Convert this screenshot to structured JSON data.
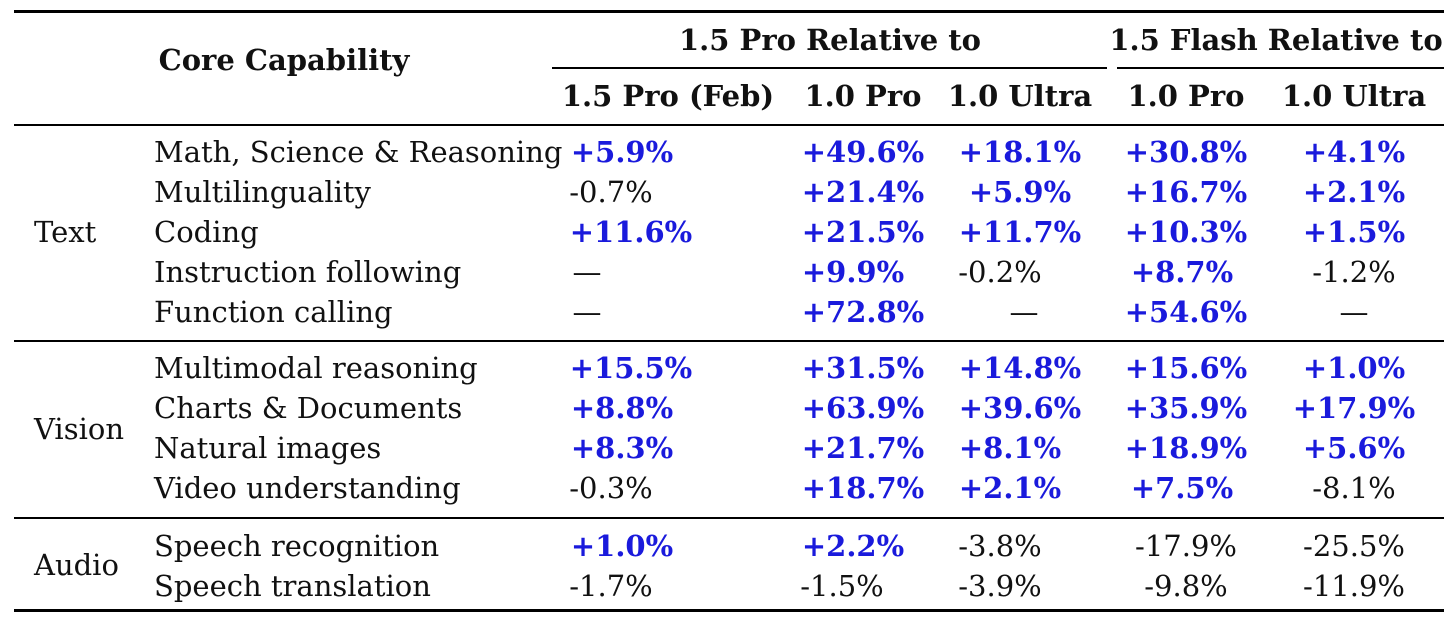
{
  "table": {
    "header": {
      "core_capability": "Core Capability",
      "group_pro": "1.5 Pro Relative to",
      "group_flash": "1.5 Flash Relative to",
      "columns": [
        "1.5 Pro (Feb)",
        "1.0 Pro",
        "1.0 Ultra",
        "1.0 Pro",
        "1.0 Ultra"
      ]
    },
    "sections": [
      {
        "name": "Text",
        "rows": [
          {
            "capability": "Math, Science & Reasoning",
            "values": [
              "+5.9%",
              "+49.6%",
              "+18.1%",
              "+30.8%",
              "+4.1%"
            ]
          },
          {
            "capability": "Multilinguality",
            "values": [
              "-0.7%",
              "+21.4%",
              "+5.9%",
              "+16.7%",
              "+2.1%"
            ]
          },
          {
            "capability": "Coding",
            "values": [
              "+11.6%",
              "+21.5%",
              "+11.7%",
              "+10.3%",
              "+1.5%"
            ]
          },
          {
            "capability": "Instruction following",
            "values": [
              "—",
              "+9.9%",
              "-0.2%",
              "+8.7%",
              "-1.2%"
            ]
          },
          {
            "capability": "Function calling",
            "values": [
              "—",
              "+72.8%",
              "—",
              "+54.6%",
              "—"
            ]
          }
        ]
      },
      {
        "name": "Vision",
        "rows": [
          {
            "capability": "Multimodal reasoning",
            "values": [
              "+15.5%",
              "+31.5%",
              "+14.8%",
              "+15.6%",
              "+1.0%"
            ]
          },
          {
            "capability": "Charts & Documents",
            "values": [
              "+8.8%",
              "+63.9%",
              "+39.6%",
              "+35.9%",
              "+17.9%"
            ]
          },
          {
            "capability": "Natural images",
            "values": [
              "+8.3%",
              "+21.7%",
              "+8.1%",
              "+18.9%",
              "+5.6%"
            ]
          },
          {
            "capability": "Video understanding",
            "values": [
              "-0.3%",
              "+18.7%",
              "+2.1%",
              "+7.5%",
              "-8.1%"
            ]
          }
        ]
      },
      {
        "name": "Audio",
        "rows": [
          {
            "capability": "Speech recognition",
            "values": [
              "+1.0%",
              "+2.2%",
              "-3.8%",
              "-17.9%",
              "-25.5%"
            ]
          },
          {
            "capability": "Speech translation",
            "values": [
              "-1.7%",
              "-1.5%",
              "-3.9%",
              "-9.8%",
              "-11.9%"
            ]
          }
        ]
      }
    ]
  },
  "colors": {
    "positive": "#1a1adc",
    "neutral": "#111111",
    "rule": "#000000"
  }
}
